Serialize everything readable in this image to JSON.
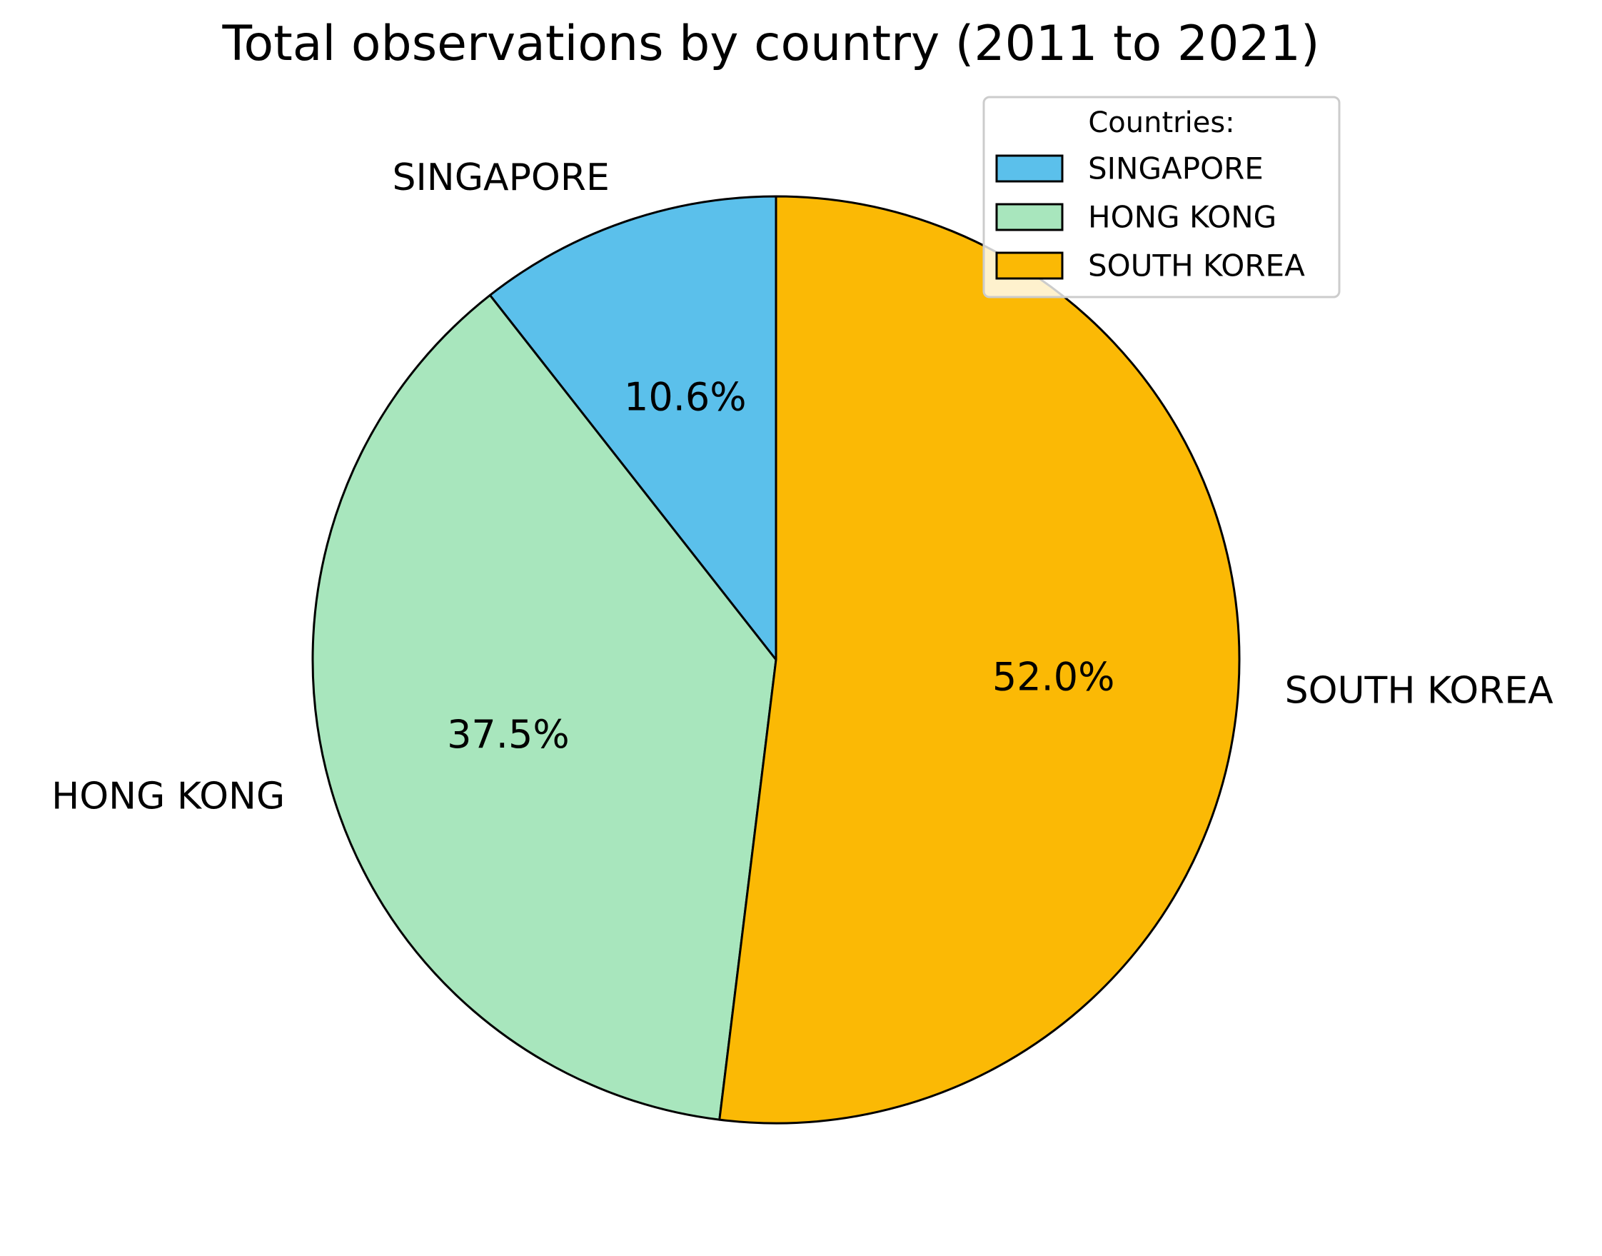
{
  "chart_data": {
    "type": "pie",
    "title": "Total observations by country (2011 to 2021)",
    "categories": [
      "SINGAPORE",
      "HONG KONG",
      "SOUTH KOREA"
    ],
    "values": [
      10.6,
      37.5,
      52.0
    ],
    "value_labels": [
      "10.6%",
      "37.5%",
      "52.0%"
    ],
    "colors": [
      "#5bc0eb",
      "#a8e6bd",
      "#fbb905"
    ],
    "start_angle_deg": 90,
    "direction": "counterclockwise",
    "legend": {
      "title": "Countries:",
      "entries": [
        "SINGAPORE",
        "HONG KONG",
        "SOUTH KOREA"
      ],
      "placement": "top-right"
    }
  }
}
